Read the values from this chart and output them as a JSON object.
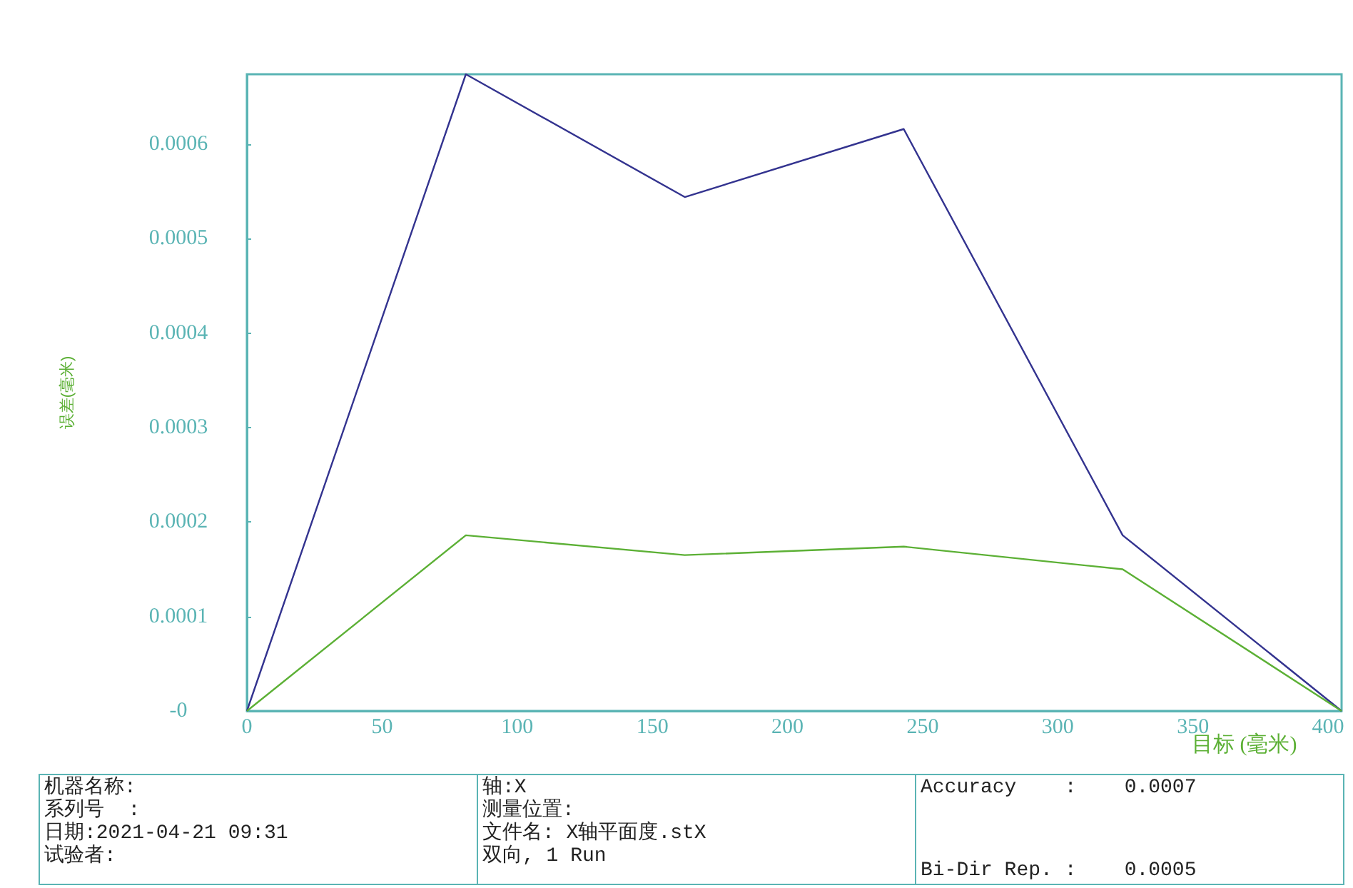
{
  "chart_data": {
    "type": "line",
    "xlabel": "目标 (毫米)",
    "ylabel": "误差(毫米)",
    "x": [
      0,
      81,
      162,
      243,
      324,
      405
    ],
    "series": [
      {
        "color": "#33338f",
        "values": [
          0,
          0.000674,
          0.000544,
          0.000616,
          0.000186,
          0
        ]
      },
      {
        "color": "#5cb035",
        "values": [
          0,
          0.000186,
          0.000165,
          0.000174,
          0.00015,
          0
        ]
      }
    ],
    "xlim": [
      0,
      405
    ],
    "xticks": [
      0,
      50,
      100,
      150,
      200,
      250,
      300,
      350,
      400
    ],
    "ylim": [
      0,
      0.000674
    ],
    "yticks": [
      {
        "value": 0,
        "label": "-0"
      },
      {
        "value": 0.0001,
        "label": "0.0001"
      },
      {
        "value": 0.0002,
        "label": "0.0002"
      },
      {
        "value": 0.0003,
        "label": "0.0003"
      },
      {
        "value": 0.0004,
        "label": "0.0004"
      },
      {
        "value": 0.0005,
        "label": "0.0005"
      },
      {
        "value": 0.0006,
        "label": "0.0006"
      }
    ],
    "grid": false,
    "marker": "none",
    "line_style": "solid",
    "annotations": [
      "机器名称:",
      "系列号  :",
      "日期:2021-04-21 09:31",
      "试验者:",
      "轴:X",
      "测量位置:",
      "文件名: X轴平面度.stX",
      "双向, 1 Run",
      "Accuracy    :    0.0007",
      "Bi-Dir Rep. :    0.0005"
    ]
  }
}
